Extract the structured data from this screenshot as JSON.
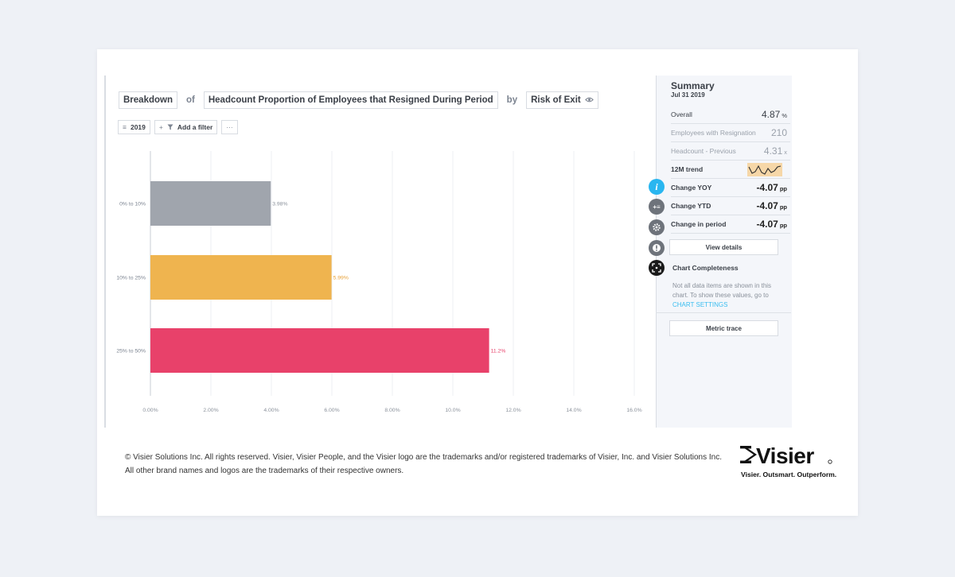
{
  "query": {
    "breakdown": "Breakdown",
    "of": "of",
    "metric": "Headcount Proportion of Employees that Resigned During Period",
    "by": "by",
    "dimension": "Risk of Exit"
  },
  "filters": {
    "year": "2019",
    "add_filter": "Add a filter",
    "more": "···"
  },
  "chart_data": {
    "type": "bar",
    "orientation": "horizontal",
    "categories": [
      "0% to 10%",
      "10% to 25%",
      "25% to 50%"
    ],
    "values": [
      3.98,
      5.99,
      11.2
    ],
    "value_labels": [
      "3.98%",
      "5.99%",
      "11.2%"
    ],
    "colors": [
      "#a0a5ad",
      "#efb44f",
      "#e8416a"
    ],
    "label_colors": [
      "#8a919b",
      "#e8a23a",
      "#e8416a"
    ],
    "xlim": [
      0,
      16
    ],
    "xticks": [
      "0.00%",
      "2.00%",
      "4.00%",
      "6.00%",
      "8.00%",
      "10.0%",
      "12.0%",
      "14.0%",
      "16.0%"
    ],
    "title": "",
    "xlabel": "",
    "ylabel": ""
  },
  "summary": {
    "title": "Summary",
    "date": "Jul 31 2019",
    "rows": [
      {
        "label": "Overall",
        "value": "4.87",
        "unit": "%"
      },
      {
        "label": "Employees with Resignation",
        "value": "210",
        "unit": ""
      },
      {
        "label": "Headcount - Previous",
        "value": "4.31",
        "unit": "x"
      },
      {
        "label": "12M trend",
        "value": "",
        "unit": ""
      },
      {
        "label": "Change YOY",
        "value": "-4.07",
        "unit": "pp"
      },
      {
        "label": "Change YTD",
        "value": "-4.07",
        "unit": "pp"
      },
      {
        "label": "Change in period",
        "value": "-4.07",
        "unit": "pp"
      }
    ],
    "view_details": "View details",
    "completeness_title": "Chart Completeness",
    "completeness_text": "Not all data items are shown in this chart. To show these values, go to",
    "completeness_link": "CHART SETTINGS",
    "metric_trace": "Metric trace"
  },
  "side_icons": {
    "info": "i",
    "add": "+≡"
  },
  "footer": {
    "copyright_line1": "© Visier Solutions Inc. All rights reserved. Visier, Visier People, and the Visier logo are the trademarks and/or registered trademarks of Visier, Inc. and Visier Solutions Inc.",
    "copyright_line2": "All other brand names and logos are the trademarks of their respective owners.",
    "logo_text": "Visier",
    "tagline": "Visier. Outsmart. Outperform."
  },
  "colors": {
    "accent": "#39bdf0",
    "panel_bg": "#f4f6fa",
    "sparkline_bg": "#f6d7a8"
  }
}
